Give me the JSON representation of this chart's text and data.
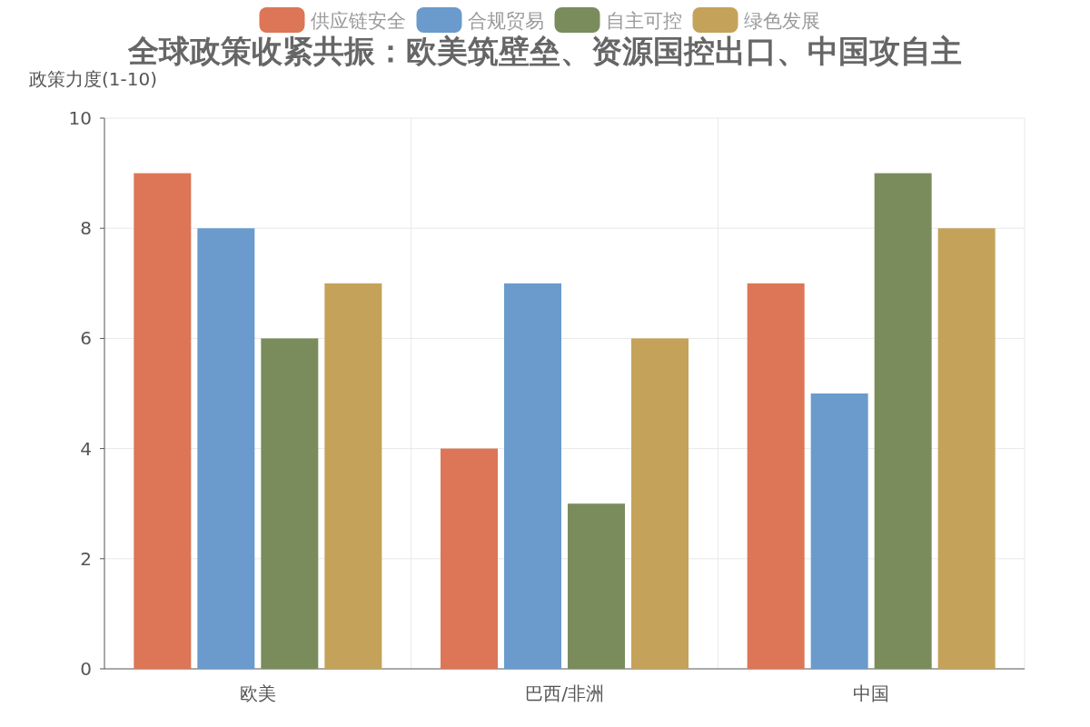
{
  "chart_data": {
    "type": "bar",
    "title": "全球政策收紧共振：欧美筑壁垒、资源国控出口、中国攻自主",
    "ylabel": "政策力度(1-10)",
    "categories": [
      "欧美",
      "巴西/非洲",
      "中国"
    ],
    "series": [
      {
        "name": "供应链安全",
        "color": "#dc7656",
        "values": [
          9,
          4,
          7
        ]
      },
      {
        "name": "合规贸易",
        "color": "#6a9bcc",
        "values": [
          8,
          7,
          5
        ]
      },
      {
        "name": "自主可控",
        "color": "#7a8c5c",
        "values": [
          6,
          3,
          9
        ]
      },
      {
        "name": "绿色发展",
        "color": "#c4a25a",
        "values": [
          7,
          6,
          8
        ]
      }
    ],
    "ylim": [
      0,
      10
    ],
    "yticks": [
      0,
      2,
      4,
      6,
      8,
      10
    ],
    "grid": true,
    "legend": "top"
  }
}
